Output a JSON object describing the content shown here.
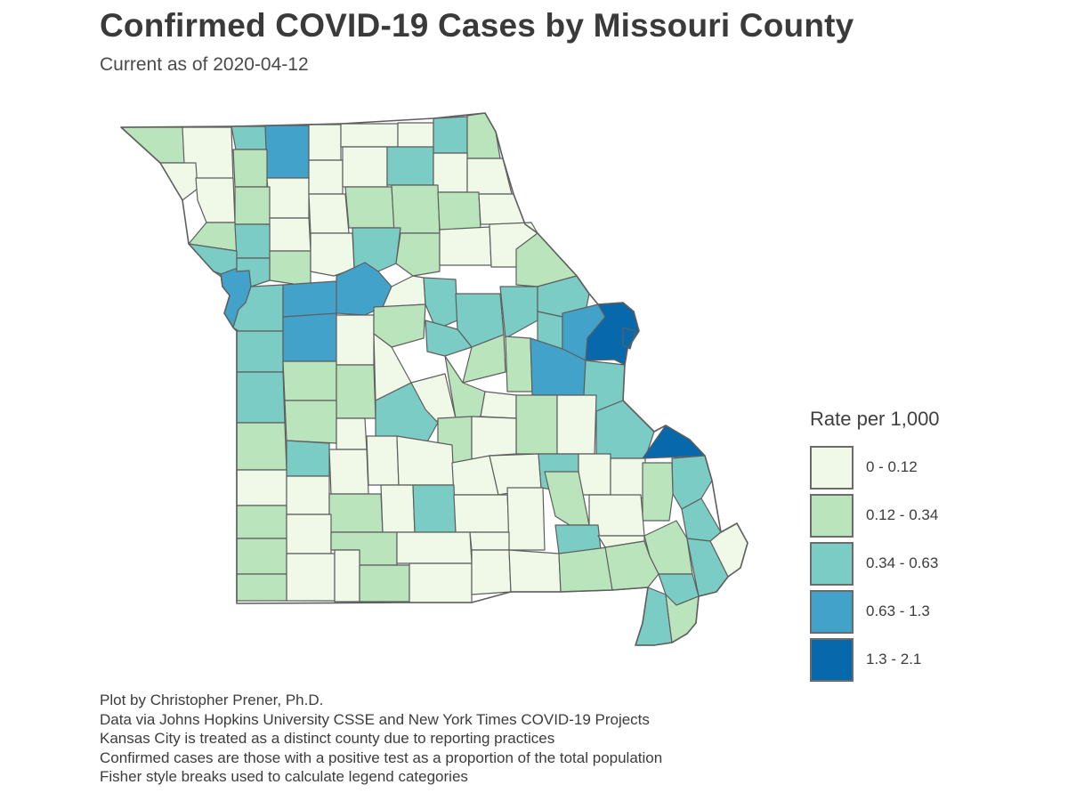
{
  "title": "Confirmed COVID-19 Cases by Missouri County",
  "subtitle": "Current as of 2020-04-12",
  "legend": {
    "title": "Rate per 1,000",
    "items": [
      {
        "label": "0 - 0.12",
        "color": "#f0f9e8"
      },
      {
        "label": "0.12 - 0.34",
        "color": "#bae4bc"
      },
      {
        "label": "0.34 - 0.63",
        "color": "#7bccc4"
      },
      {
        "label": "0.63 - 1.3",
        "color": "#43a2ca"
      },
      {
        "label": "1.3 - 2.1",
        "color": "#0868ac"
      }
    ]
  },
  "caption": [
    "Plot by Christopher Prener, Ph.D.",
    "Data via Johns Hopkins University CSSE and New York Times COVID-19 Projects",
    "Kansas City is treated as a distinct county due to reporting practices",
    "Confirmed cases are those with a positive test as a proportion of the total population",
    "Fisher style breaks used to calculate legend categories"
  ]
}
